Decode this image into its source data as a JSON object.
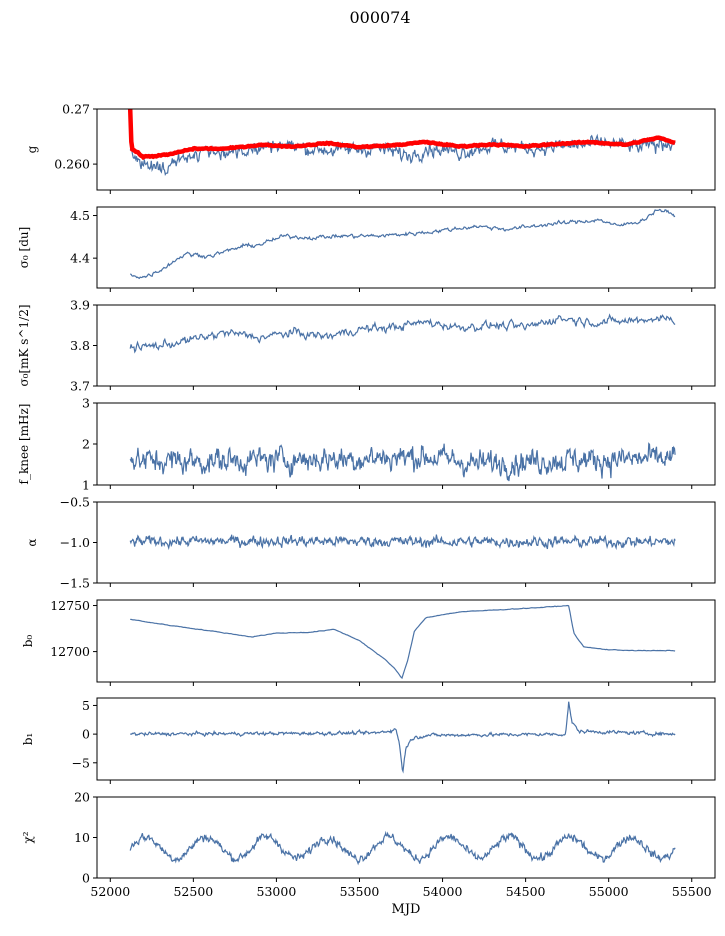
{
  "figure": {
    "title": "000074"
  },
  "chart_data": [
    {
      "type": "line",
      "ylabel": "g",
      "ylim": [
        0.2553,
        0.27
      ],
      "yticks": [
        0.26,
        0.27
      ],
      "ytick_labels": [
        "0.260",
        "0.27"
      ],
      "series": [
        {
          "color": "#4a72a6",
          "base": [
            [
              52120,
              0.2627
            ],
            [
              52200,
              0.26
            ],
            [
              52300,
              0.2597
            ],
            [
              52450,
              0.2612
            ],
            [
              52600,
              0.2622
            ],
            [
              52800,
              0.262
            ],
            [
              53000,
              0.2637
            ],
            [
              53200,
              0.2628
            ],
            [
              53400,
              0.2625
            ],
            [
              53600,
              0.263
            ],
            [
              53800,
              0.2615
            ],
            [
              53900,
              0.263
            ],
            [
              54100,
              0.2622
            ],
            [
              54300,
              0.2635
            ],
            [
              54500,
              0.2628
            ],
            [
              54700,
              0.2632
            ],
            [
              55000,
              0.2638
            ],
            [
              55200,
              0.263
            ],
            [
              55400,
              0.2642
            ]
          ],
          "noise": 0.0011,
          "n": 700
        },
        {
          "color": "#ff0000",
          "base": [
            [
              52120,
              0.27
            ],
            [
              52128,
              0.2628
            ],
            [
              52200,
              0.2613
            ],
            [
              52350,
              0.2617
            ],
            [
              52500,
              0.2628
            ],
            [
              52700,
              0.2628
            ],
            [
              52900,
              0.2635
            ],
            [
              53100,
              0.2632
            ],
            [
              53300,
              0.2638
            ],
            [
              53500,
              0.2631
            ],
            [
              53700,
              0.2634
            ],
            [
              53900,
              0.264
            ],
            [
              54100,
              0.2632
            ],
            [
              54300,
              0.2636
            ],
            [
              54500,
              0.2632
            ],
            [
              54700,
              0.2637
            ],
            [
              54900,
              0.264
            ],
            [
              55100,
              0.2635
            ],
            [
              55300,
              0.2648
            ],
            [
              55400,
              0.2638
            ]
          ],
          "noise": 0.0001,
          "n": 500
        }
      ]
    },
    {
      "type": "line",
      "ylabel": "σ₀ [du]",
      "ylim": [
        4.33,
        4.52
      ],
      "yticks": [
        4.4,
        4.5
      ],
      "ytick_labels": [
        "4.4",
        "4.5"
      ],
      "series": [
        {
          "color": "#4a72a6",
          "base": [
            [
              52120,
              4.362
            ],
            [
              52200,
              4.355
            ],
            [
              52300,
              4.372
            ],
            [
              52450,
              4.41
            ],
            [
              52600,
              4.405
            ],
            [
              52800,
              4.428
            ],
            [
              52900,
              4.432
            ],
            [
              53050,
              4.452
            ],
            [
              53200,
              4.448
            ],
            [
              53400,
              4.452
            ],
            [
              53600,
              4.452
            ],
            [
              53800,
              4.457
            ],
            [
              54000,
              4.465
            ],
            [
              54200,
              4.475
            ],
            [
              54400,
              4.468
            ],
            [
              54600,
              4.478
            ],
            [
              54800,
              4.485
            ],
            [
              54950,
              4.49
            ],
            [
              55050,
              4.475
            ],
            [
              55200,
              4.488
            ],
            [
              55300,
              4.515
            ],
            [
              55400,
              4.5
            ]
          ],
          "noise": 0.004,
          "n": 600
        }
      ]
    },
    {
      "type": "line",
      "ylabel": "σ₀[mK s^1/2]",
      "ylim": [
        3.7,
        3.9
      ],
      "yticks": [
        3.7,
        3.8,
        3.9
      ],
      "ytick_labels": [
        "3.7",
        "3.8",
        "3.9"
      ],
      "series": [
        {
          "color": "#4a72a6",
          "base": [
            [
              52120,
              3.795
            ],
            [
              52300,
              3.8
            ],
            [
              52500,
              3.815
            ],
            [
              52700,
              3.832
            ],
            [
              52900,
              3.82
            ],
            [
              53100,
              3.832
            ],
            [
              53300,
              3.822
            ],
            [
              53500,
              3.84
            ],
            [
              53700,
              3.845
            ],
            [
              53900,
              3.858
            ],
            [
              54100,
              3.845
            ],
            [
              54300,
              3.85
            ],
            [
              54500,
              3.845
            ],
            [
              54700,
              3.868
            ],
            [
              54900,
              3.858
            ],
            [
              55100,
              3.86
            ],
            [
              55300,
              3.868
            ],
            [
              55400,
              3.865
            ]
          ],
          "noise": 0.009,
          "n": 600
        }
      ]
    },
    {
      "type": "line",
      "ylabel": "f_knee [mHz]",
      "ylim": [
        1,
        3
      ],
      "yticks": [
        1,
        2,
        3
      ],
      "ytick_labels": [
        "1",
        "2",
        "3"
      ],
      "series": [
        {
          "color": "#4a72a6",
          "base": [
            [
              52120,
              1.6
            ],
            [
              52500,
              1.58
            ],
            [
              53000,
              1.62
            ],
            [
              53500,
              1.65
            ],
            [
              53900,
              1.7
            ],
            [
              54200,
              1.52
            ],
            [
              54600,
              1.6
            ],
            [
              55000,
              1.62
            ],
            [
              55400,
              1.65
            ]
          ],
          "noise": 0.26,
          "n": 850
        }
      ]
    },
    {
      "type": "line",
      "ylabel": "α",
      "ylim": [
        -1.5,
        -0.5
      ],
      "yticks": [
        -1.5,
        -1.0,
        -0.5
      ],
      "ytick_labels": [
        "−1.5",
        "−1.0",
        "−0.5"
      ],
      "series": [
        {
          "color": "#4a72a6",
          "base": [
            [
              52120,
              -0.99
            ],
            [
              53000,
              -0.98
            ],
            [
              54000,
              -0.99
            ],
            [
              55400,
              -0.99
            ]
          ],
          "noise": 0.055,
          "n": 850
        }
      ]
    },
    {
      "type": "line",
      "ylabel": "b₀",
      "ylim": [
        12667,
        12756
      ],
      "yticks": [
        12700,
        12750
      ],
      "ytick_labels": [
        "12700",
        "12750"
      ],
      "series": [
        {
          "color": "#4a72a6",
          "base": [
            [
              52120,
              12735
            ],
            [
              52300,
              12730
            ],
            [
              52500,
              12725
            ],
            [
              52700,
              12720
            ],
            [
              52850,
              12716
            ],
            [
              53000,
              12720
            ],
            [
              53200,
              12721
            ],
            [
              53350,
              12724
            ],
            [
              53500,
              12712
            ],
            [
              53650,
              12692
            ],
            [
              53720,
              12680
            ],
            [
              53755,
              12671
            ],
            [
              53790,
              12690
            ],
            [
              53830,
              12722
            ],
            [
              53900,
              12737
            ],
            [
              54100,
              12743
            ],
            [
              54400,
              12746
            ],
            [
              54600,
              12748
            ],
            [
              54760,
              12750
            ],
            [
              54790,
              12720
            ],
            [
              54850,
              12705
            ],
            [
              55000,
              12702
            ],
            [
              55200,
              12701
            ],
            [
              55400,
              12701
            ]
          ],
          "noise": 0.3,
          "n": 400
        }
      ]
    },
    {
      "type": "line",
      "ylabel": "b₁",
      "ylim": [
        -8,
        6.3
      ],
      "yticks": [
        -5,
        0,
        5
      ],
      "ytick_labels": [
        "−5",
        "0",
        "5"
      ],
      "series": [
        {
          "color": "#4a72a6",
          "base": [
            [
              52120,
              0.0
            ],
            [
              53600,
              0.2
            ],
            [
              53720,
              0.8
            ],
            [
              53740,
              -1.5
            ],
            [
              53760,
              -6.8
            ],
            [
              53780,
              -2.2
            ],
            [
              53820,
              -0.7
            ],
            [
              53900,
              -0.2
            ],
            [
              54740,
              0.0
            ],
            [
              54760,
              5.5
            ],
            [
              54780,
              2.0
            ],
            [
              54820,
              0.5
            ],
            [
              55400,
              0.0
            ]
          ],
          "noise": 0.25,
          "n": 800
        }
      ]
    },
    {
      "type": "line",
      "ylabel": "χ²",
      "ylim": [
        0,
        20
      ],
      "yticks": [
        0,
        10,
        20
      ],
      "ytick_labels": [
        "0",
        "10",
        "20"
      ],
      "xticks": [
        52000,
        52500,
        53000,
        53500,
        54000,
        54500,
        55000,
        55500
      ],
      "xtick_labels": [
        "52000",
        "52500",
        "53000",
        "53500",
        "54000",
        "54500",
        "55000",
        "55500"
      ],
      "xlabel": "MJD",
      "series": [
        {
          "color": "#4a72a6",
          "base": [
            [
              52120,
              7.5
            ],
            [
              55400,
              7.5
            ]
          ],
          "periodic": {
            "amp": 2.6,
            "period": 365.25,
            "phase": 52120
          },
          "noise": 0.9,
          "n": 850
        }
      ]
    }
  ],
  "shared_x": {
    "xlim": [
      51920,
      55640
    ]
  }
}
